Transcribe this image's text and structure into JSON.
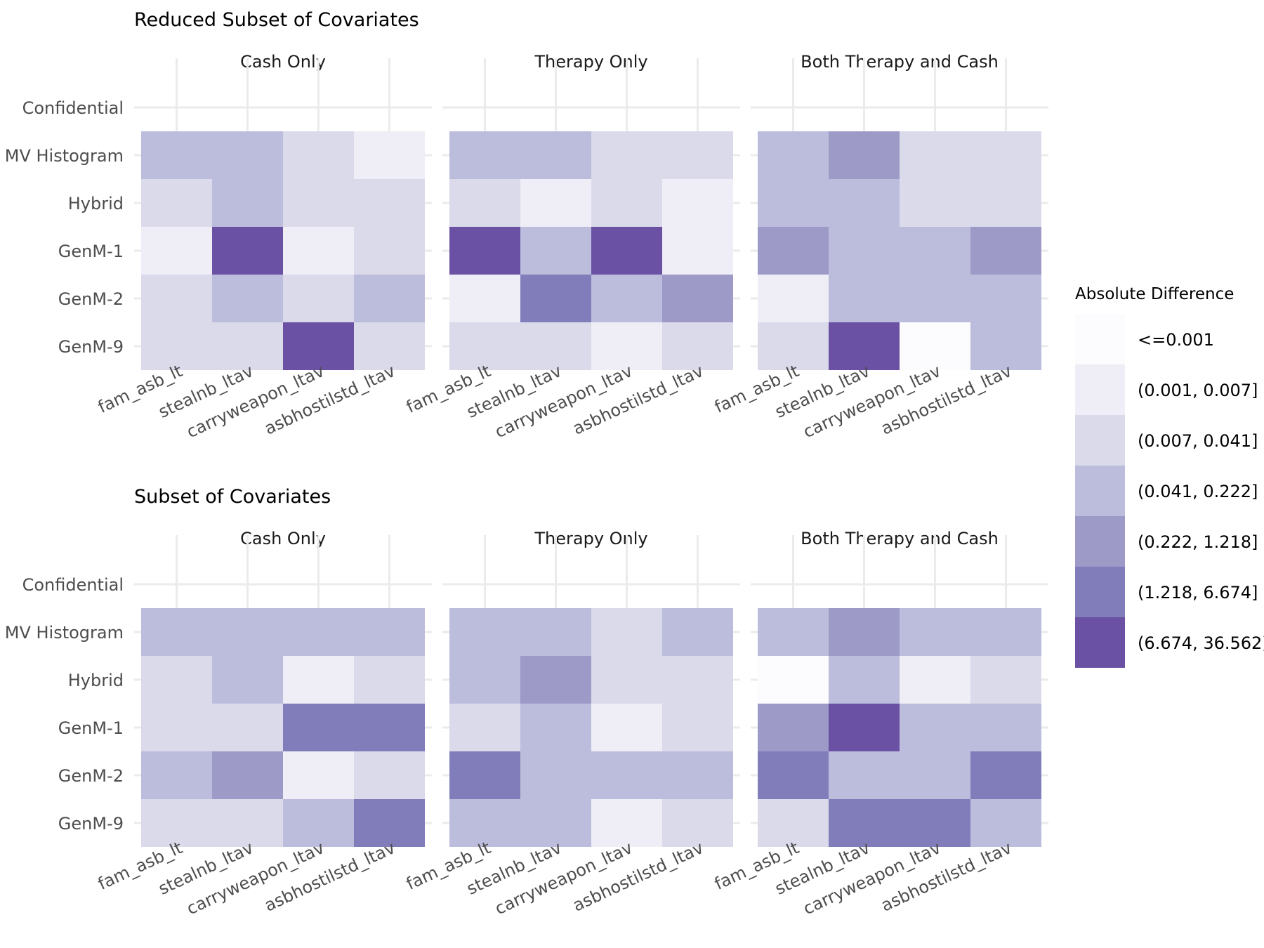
{
  "chart_data": {
    "type": "heatmap",
    "legend": {
      "title": "Absolute Difference",
      "position": "right",
      "bins": [
        "<=0.001",
        "(0.001, 0.007]",
        "(0.007, 0.041]",
        "(0.041, 0.222]",
        "(0.222, 1.218]",
        "(1.218, 6.674]",
        "(6.674, 36.562]"
      ],
      "colors": [
        "#fcfbfd",
        "#efedf5",
        "#dadaeb",
        "#bcbddc",
        "#9e9ac8",
        "#807dba",
        "#6a51a3"
      ]
    },
    "methods": [
      "Confidential",
      "MV Histogram",
      "Hybrid",
      "GenM-1",
      "GenM-2",
      "GenM-9"
    ],
    "variables": [
      "fam_asb_lt",
      "stealnb_ltav",
      "carryweapon_ltav",
      "asbhostilstd_ltav"
    ],
    "facets": [
      "Cash Only",
      "Therapy Only",
      "Both Therapy and Cash"
    ],
    "panels": [
      {
        "title": "Reduced Subset of Covariates",
        "facets": [
          {
            "name": "Cash Only",
            "cells": {
              "MV Histogram": [
                3,
                3,
                2,
                1
              ],
              "Hybrid": [
                2,
                3,
                2,
                2
              ],
              "GenM-1": [
                1,
                6,
                1,
                2
              ],
              "GenM-2": [
                2,
                3,
                2,
                3
              ],
              "GenM-9": [
                2,
                2,
                6,
                2
              ]
            }
          },
          {
            "name": "Therapy Only",
            "cells": {
              "MV Histogram": [
                3,
                3,
                2,
                2
              ],
              "Hybrid": [
                2,
                1,
                2,
                1
              ],
              "GenM-1": [
                6,
                3,
                6,
                1
              ],
              "GenM-2": [
                1,
                5,
                3,
                4
              ],
              "GenM-9": [
                2,
                2,
                1,
                2
              ]
            }
          },
          {
            "name": "Both Therapy and Cash",
            "cells": {
              "MV Histogram": [
                3,
                4,
                2,
                2
              ],
              "Hybrid": [
                3,
                3,
                2,
                2
              ],
              "GenM-1": [
                4,
                3,
                3,
                4
              ],
              "GenM-2": [
                1,
                3,
                3,
                3
              ],
              "GenM-9": [
                2,
                6,
                0,
                3
              ]
            }
          }
        ]
      },
      {
        "title": "Subset of Covariates",
        "facets": [
          {
            "name": "Cash Only",
            "cells": {
              "MV Histogram": [
                3,
                3,
                3,
                3
              ],
              "Hybrid": [
                2,
                3,
                1,
                2
              ],
              "GenM-1": [
                2,
                2,
                5,
                5
              ],
              "GenM-2": [
                3,
                4,
                1,
                2
              ],
              "GenM-9": [
                2,
                2,
                3,
                5
              ]
            }
          },
          {
            "name": "Therapy Only",
            "cells": {
              "MV Histogram": [
                3,
                3,
                2,
                3
              ],
              "Hybrid": [
                3,
                4,
                2,
                2
              ],
              "GenM-1": [
                2,
                3,
                1,
                2
              ],
              "GenM-2": [
                5,
                3,
                3,
                3
              ],
              "GenM-9": [
                3,
                3,
                1,
                2
              ]
            }
          },
          {
            "name": "Both Therapy and Cash",
            "cells": {
              "MV Histogram": [
                3,
                4,
                3,
                3
              ],
              "Hybrid": [
                0,
                3,
                1,
                2
              ],
              "GenM-1": [
                4,
                6,
                3,
                3
              ],
              "GenM-2": [
                5,
                3,
                3,
                5
              ],
              "GenM-9": [
                2,
                5,
                5,
                3
              ]
            }
          }
        ]
      }
    ]
  }
}
